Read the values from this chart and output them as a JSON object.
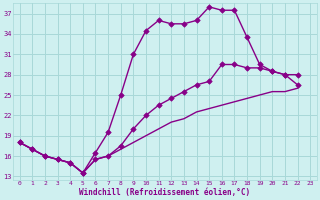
{
  "xlabel": "Windchill (Refroidissement éolien,°C)",
  "background_color": "#cff0f0",
  "grid_color": "#a8d8d8",
  "line_color": "#880088",
  "xlim": [
    -0.5,
    23.5
  ],
  "ylim": [
    12.5,
    38.5
  ],
  "yticks": [
    13,
    16,
    19,
    22,
    25,
    28,
    31,
    34,
    37
  ],
  "xticks": [
    0,
    1,
    2,
    3,
    4,
    5,
    6,
    7,
    8,
    9,
    10,
    11,
    12,
    13,
    14,
    15,
    16,
    17,
    18,
    19,
    20,
    21,
    22,
    23
  ],
  "series": [
    {
      "x": [
        0,
        1,
        2,
        3,
        4,
        5,
        6,
        7,
        8,
        9,
        10,
        11,
        12,
        13,
        14,
        15,
        16,
        17,
        18,
        19,
        20,
        21,
        22
      ],
      "y": [
        18.0,
        17.0,
        16.0,
        15.5,
        15.0,
        13.5,
        16.5,
        19.5,
        25.0,
        31.0,
        34.5,
        36.0,
        35.5,
        35.5,
        36.0,
        38.0,
        37.5,
        37.5,
        33.5,
        29.5,
        28.5,
        28.0,
        28.0
      ],
      "marker": true
    },
    {
      "x": [
        0,
        1,
        2,
        3,
        4,
        5,
        6,
        7,
        8,
        9,
        10,
        11,
        12,
        13,
        14,
        15,
        16,
        17,
        18,
        19,
        20,
        21,
        22
      ],
      "y": [
        18.0,
        17.0,
        16.0,
        15.5,
        15.0,
        13.5,
        15.5,
        16.0,
        17.5,
        20.0,
        22.0,
        23.5,
        24.5,
        25.5,
        26.5,
        27.0,
        29.5,
        29.5,
        29.0,
        29.0,
        28.5,
        28.0,
        26.5
      ],
      "marker": true
    },
    {
      "x": [
        0,
        1,
        2,
        3,
        4,
        5,
        6,
        7,
        8,
        9,
        10,
        11,
        12,
        13,
        14,
        15,
        16,
        17,
        18,
        19,
        20,
        21,
        22
      ],
      "y": [
        18.0,
        17.0,
        16.0,
        15.5,
        15.0,
        13.5,
        15.5,
        16.0,
        17.0,
        18.0,
        19.0,
        20.0,
        21.0,
        21.5,
        22.5,
        23.0,
        23.5,
        24.0,
        24.5,
        25.0,
        25.5,
        25.5,
        26.0
      ],
      "marker": false
    }
  ],
  "marker_symbol": "D",
  "markersize": 2.8,
  "linewidth": 1.0
}
